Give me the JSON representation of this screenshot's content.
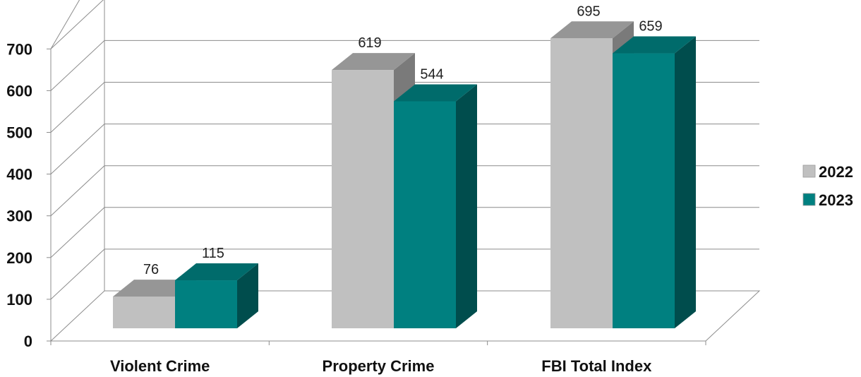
{
  "chart_data": {
    "type": "bar",
    "categories": [
      "Violent Crime",
      "Property Crime",
      "FBI Total Index"
    ],
    "series": [
      {
        "name": "2022",
        "values": [
          76,
          619,
          695
        ],
        "color": "#c0c0c0",
        "top_color": "#969696",
        "side_color": "#7a7a7a"
      },
      {
        "name": "2023",
        "values": [
          115,
          544,
          659
        ],
        "color": "#008080",
        "top_color": "#006b6b",
        "side_color": "#004d4d"
      }
    ],
    "ylim": [
      0,
      700
    ],
    "yticks": [
      "0",
      "100",
      "200",
      "300",
      "400",
      "500",
      "600",
      "700"
    ],
    "grid": true,
    "legend_position": "right",
    "data_labels": [
      [
        "76",
        "619",
        "695"
      ],
      [
        "115",
        "544",
        "659"
      ]
    ]
  }
}
